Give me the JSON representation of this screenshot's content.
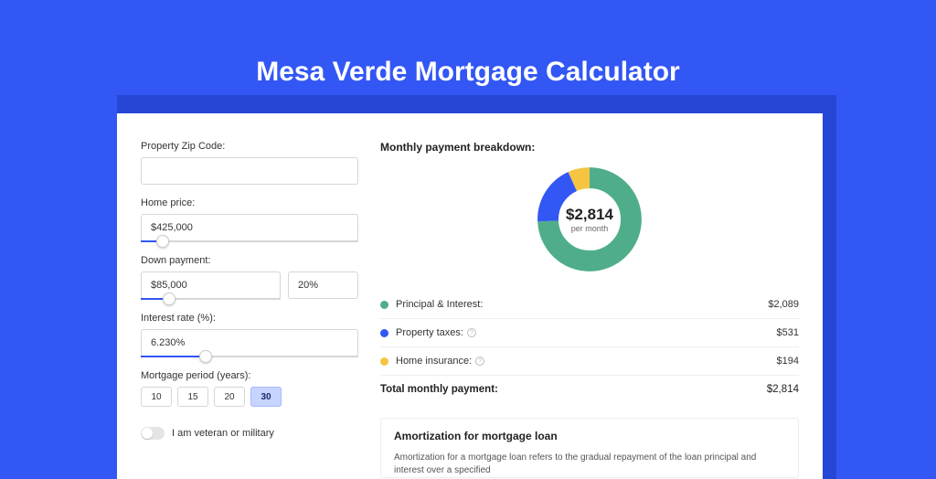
{
  "page": {
    "title": "Mesa Verde Mortgage Calculator",
    "bg_color": "#3257f5",
    "shadow_color": "#2646d6",
    "card_bg": "#ffffff"
  },
  "form": {
    "zip": {
      "label": "Property Zip Code:",
      "value": ""
    },
    "home_price": {
      "label": "Home price:",
      "value": "$425,000",
      "slider": {
        "fill_pct": 10,
        "thumb_pct": 10
      }
    },
    "down_payment": {
      "label": "Down payment:",
      "amount": "$85,000",
      "pct": "20%",
      "slider": {
        "fill_pct": 20,
        "thumb_pct": 20
      }
    },
    "interest_rate": {
      "label": "Interest rate (%):",
      "value": "6.230%",
      "slider": {
        "fill_pct": 30,
        "thumb_pct": 30
      }
    },
    "period": {
      "label": "Mortgage period (years):",
      "options": [
        "10",
        "15",
        "20",
        "30"
      ],
      "active_index": 3
    },
    "veteran": {
      "label": "I am veteran or military",
      "on": false
    }
  },
  "breakdown": {
    "title": "Monthly payment breakdown:",
    "donut": {
      "value": "$2,814",
      "sub": "per month",
      "segments": [
        {
          "name": "principal_interest",
          "pct": 74.2,
          "color": "#4fae89"
        },
        {
          "name": "property_taxes",
          "pct": 18.9,
          "color": "#3257f5"
        },
        {
          "name": "home_insurance",
          "pct": 6.9,
          "color": "#f5c542"
        }
      ]
    },
    "rows": [
      {
        "label": "Principal & Interest:",
        "amount": "$2,089",
        "color": "#4fae89",
        "info": false
      },
      {
        "label": "Property taxes:",
        "amount": "$531",
        "color": "#3257f5",
        "info": true
      },
      {
        "label": "Home insurance:",
        "amount": "$194",
        "color": "#f5c542",
        "info": true
      }
    ],
    "total": {
      "label": "Total monthly payment:",
      "amount": "$2,814"
    }
  },
  "amortization": {
    "title": "Amortization for mortgage loan",
    "text": "Amortization for a mortgage loan refers to the gradual repayment of the loan principal and interest over a specified"
  }
}
